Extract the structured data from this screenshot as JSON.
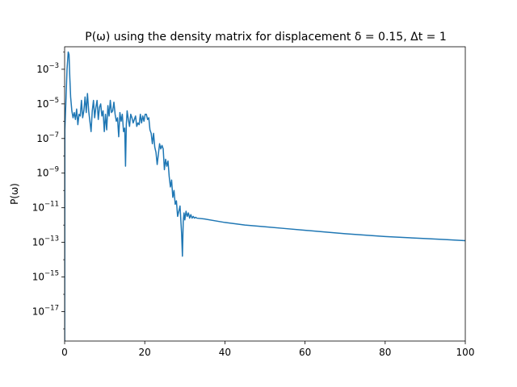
{
  "chart_data": {
    "type": "line",
    "title": "P(ω) using the density matrix for displacement δ = 0.15, Δt = 1",
    "xlabel": "",
    "ylabel": "P(ω)",
    "xlim": [
      0,
      100
    ],
    "ylim": [
      -18.7,
      -1.7
    ],
    "y_scale": "log",
    "grid": false,
    "legend": "none",
    "line_color": "#1f77b4",
    "x_ticks": [
      0,
      20,
      40,
      60,
      80,
      100
    ],
    "x_tick_labels": [
      "0",
      "20",
      "40",
      "60",
      "80",
      "100"
    ],
    "y_tick_exponents": [
      -3,
      -5,
      -7,
      -9,
      -11,
      -13,
      -15,
      -17
    ],
    "y_tick_labels": [
      {
        "base": "10",
        "exp": "−3"
      },
      {
        "base": "10",
        "exp": "−5"
      },
      {
        "base": "10",
        "exp": "−7"
      },
      {
        "base": "10",
        "exp": "−9"
      },
      {
        "base": "10",
        "exp": "−11"
      },
      {
        "base": "10",
        "exp": "−13"
      },
      {
        "base": "10",
        "exp": "−15"
      },
      {
        "base": "10",
        "exp": "−17"
      }
    ],
    "series": [
      {
        "x": [
          0,
          0.05,
          0.3,
          0.6,
          0.9,
          1.1,
          1.3,
          1.5,
          1.8,
          2.1,
          2.4,
          2.7,
          3.0,
          3.3,
          3.6,
          3.9,
          4.2,
          4.5,
          4.8,
          5.1,
          5.4,
          5.7,
          6.0,
          6.3,
          6.6,
          6.9,
          7.2,
          7.5,
          7.8,
          8.1,
          8.4,
          8.7,
          9.0,
          9.3,
          9.6,
          9.9,
          10.2,
          10.5,
          10.8,
          11.1,
          11.4,
          11.7,
          12.0,
          12.3,
          12.6,
          12.9,
          13.2,
          13.5,
          13.8,
          14.1,
          14.4,
          14.7,
          15.0,
          15.2,
          15.4,
          15.6,
          15.9,
          16.2,
          16.5,
          16.8,
          17.1,
          17.4,
          17.7,
          18.0,
          18.3,
          18.6,
          18.9,
          19.2,
          19.5,
          19.8,
          20.1,
          20.4,
          20.7,
          21.0,
          21.3,
          21.6,
          21.9,
          22.2,
          22.5,
          22.8,
          23.1,
          23.4,
          23.7,
          24.0,
          24.3,
          24.6,
          24.9,
          25.2,
          25.5,
          25.8,
          26.1,
          26.4,
          26.7,
          27.0,
          27.3,
          27.6,
          27.9,
          28.2,
          28.5,
          28.8,
          29.0,
          29.2,
          29.4,
          29.6,
          29.8,
          30.0,
          30.3,
          30.6,
          30.9,
          31.2,
          31.5,
          31.8,
          32.1,
          32.4,
          32.7,
          33.0,
          35,
          40,
          45,
          50,
          55,
          60,
          65,
          70,
          75,
          80,
          85,
          90,
          95,
          100
        ],
        "y": [
          -18.8,
          -6.5,
          -5.0,
          -3.0,
          -2.0,
          -2.15,
          -3.5,
          -4.6,
          -5.4,
          -5.8,
          -5.5,
          -5.9,
          -5.3,
          -6.2,
          -5.6,
          -5.7,
          -4.8,
          -5.8,
          -5.4,
          -4.6,
          -5.5,
          -4.4,
          -5.4,
          -6.0,
          -6.6,
          -5.4,
          -4.8,
          -5.8,
          -5.2,
          -4.8,
          -5.9,
          -5.2,
          -5.0,
          -5.7,
          -5.4,
          -6.6,
          -5.6,
          -6.5,
          -5.1,
          -5.7,
          -4.8,
          -5.5,
          -5.4,
          -4.9,
          -5.6,
          -6.0,
          -5.8,
          -6.9,
          -5.5,
          -6.0,
          -5.6,
          -6.6,
          -6.4,
          -8.6,
          -6.2,
          -5.4,
          -5.9,
          -6.3,
          -5.6,
          -5.8,
          -6.1,
          -5.9,
          -5.7,
          -6.3,
          -6.1,
          -6.2,
          -5.6,
          -6.1,
          -5.7,
          -6.0,
          -5.6,
          -5.6,
          -5.9,
          -5.8,
          -6.5,
          -6.7,
          -7.3,
          -6.7,
          -7.5,
          -7.8,
          -8.5,
          -7.9,
          -7.3,
          -7.6,
          -7.4,
          -7.6,
          -8.8,
          -8.2,
          -8.6,
          -8.3,
          -9.2,
          -9.8,
          -9.4,
          -10.4,
          -10.0,
          -10.8,
          -10.6,
          -11.5,
          -11.2,
          -10.9,
          -11.7,
          -12.5,
          -13.8,
          -11.8,
          -11.3,
          -11.7,
          -11.2,
          -11.5,
          -11.3,
          -11.6,
          -11.4,
          -11.6,
          -11.5,
          -11.6,
          -11.55,
          -11.6,
          -11.65,
          -11.85,
          -12.0,
          -12.1,
          -12.2,
          -12.3,
          -12.4,
          -12.5,
          -12.58,
          -12.66,
          -12.72,
          -12.78,
          -12.84,
          -12.9
        ]
      }
    ]
  }
}
